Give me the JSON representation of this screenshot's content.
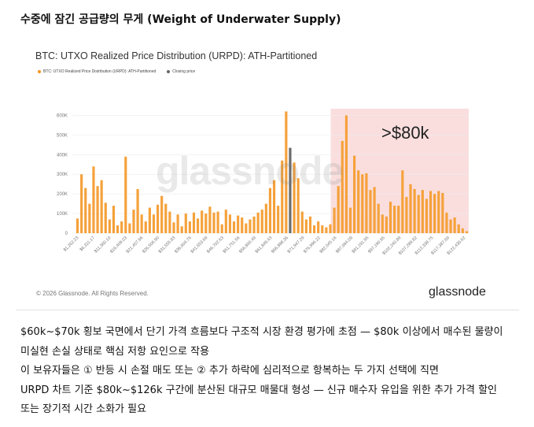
{
  "heading": "수중에 잠긴 공급량의 무게 (Weight of Underwater Supply)",
  "chart_data": {
    "type": "bar",
    "title": "BTC: UTXO Realized Price Distribution (URPD): ATH-Partitioned",
    "legend": [
      {
        "label": "BTC: UTXO Realized Price Distribution (URPD): ATH-Partitioned",
        "color": "#f7931a"
      },
      {
        "label": "Closing price",
        "color": "#666666"
      }
    ],
    "legend_position": "top-left",
    "ylim": [
      0,
      650000
    ],
    "yticks": [
      {
        "value": 0,
        "label": "0"
      },
      {
        "value": 100000,
        "label": "100K"
      },
      {
        "value": 200000,
        "label": "200K"
      },
      {
        "value": 300000,
        "label": "300K"
      },
      {
        "value": 400000,
        "label": "400K"
      },
      {
        "value": 500000,
        "label": "500K"
      },
      {
        "value": 600000,
        "label": "600K"
      }
    ],
    "xtick_labels": [
      "$1,262.23",
      "$6,311.17",
      "$11,360.10",
      "$16,409.03",
      "$21,457.96",
      "$26,506.90",
      "$31,555.83",
      "$36,604.76",
      "$41,653.69",
      "$46,702.63",
      "$51,751.56",
      "$56,800.49",
      "$61,849.43",
      "$66,898.36",
      "$71,947.29",
      "$76,996.22",
      "$82,045.16",
      "$87,094.09",
      "$91,191.95",
      "$97,190.95",
      "$102,240.89",
      "$107,289.82",
      "$112,338.75",
      "$117,387.69",
      "$122,436.62"
    ],
    "values": [
      75000,
      300000,
      230000,
      150000,
      340000,
      240000,
      270000,
      155000,
      70000,
      140000,
      40000,
      60000,
      390000,
      50000,
      120000,
      225000,
      95000,
      60000,
      130000,
      95000,
      145000,
      190000,
      150000,
      110000,
      55000,
      95000,
      35000,
      100000,
      60000,
      105000,
      75000,
      115000,
      100000,
      135000,
      105000,
      110000,
      45000,
      120000,
      95000,
      60000,
      90000,
      80000,
      50000,
      70000,
      85000,
      105000,
      120000,
      150000,
      230000,
      270000,
      140000,
      370000,
      620000,
      435000,
      360000,
      280000,
      110000,
      70000,
      85000,
      40000,
      60000,
      40000,
      30000,
      45000,
      130000,
      240000,
      470000,
      600000,
      130000,
      395000,
      320000,
      300000,
      305000,
      220000,
      235000,
      150000,
      95000,
      85000,
      160000,
      140000,
      140000,
      320000,
      185000,
      250000,
      225000,
      195000,
      220000,
      175000,
      215000,
      200000,
      215000,
      205000,
      105000,
      70000,
      80000,
      45000,
      25000,
      10000
    ],
    "closing_price_index": 53,
    "highlight_region": {
      "from_index": 64,
      "to_index": 97,
      "label": ">$80k",
      "color": "#fadede"
    },
    "grid": true
  },
  "watermark": "glassnode",
  "copyright": "© 2026 Glassnode. All Rights Reserved.",
  "brand": "glassnode",
  "body_lines": [
    "$60k~$70k 횡보 국면에서 단기 가격 흐름보다 구조적 시장 환경 평가에 초점 — $80k 이상에서 매수된 물량이",
    "미실현 손실 상태로 핵심 저항 요인으로 작용",
    "이 보유자들은 ① 반등 시 손절 매도 또는 ② 추가 하락에 심리적으로 항복하는 두 가지 선택에 직면",
    "URPD 차트 기준 $80k~$126k 구간에 분산된 대규모 매물대 형성 — 신규 매수자 유입을 위한 추가 가격 할인",
    "또는 장기적 시간 소화가 필요"
  ]
}
